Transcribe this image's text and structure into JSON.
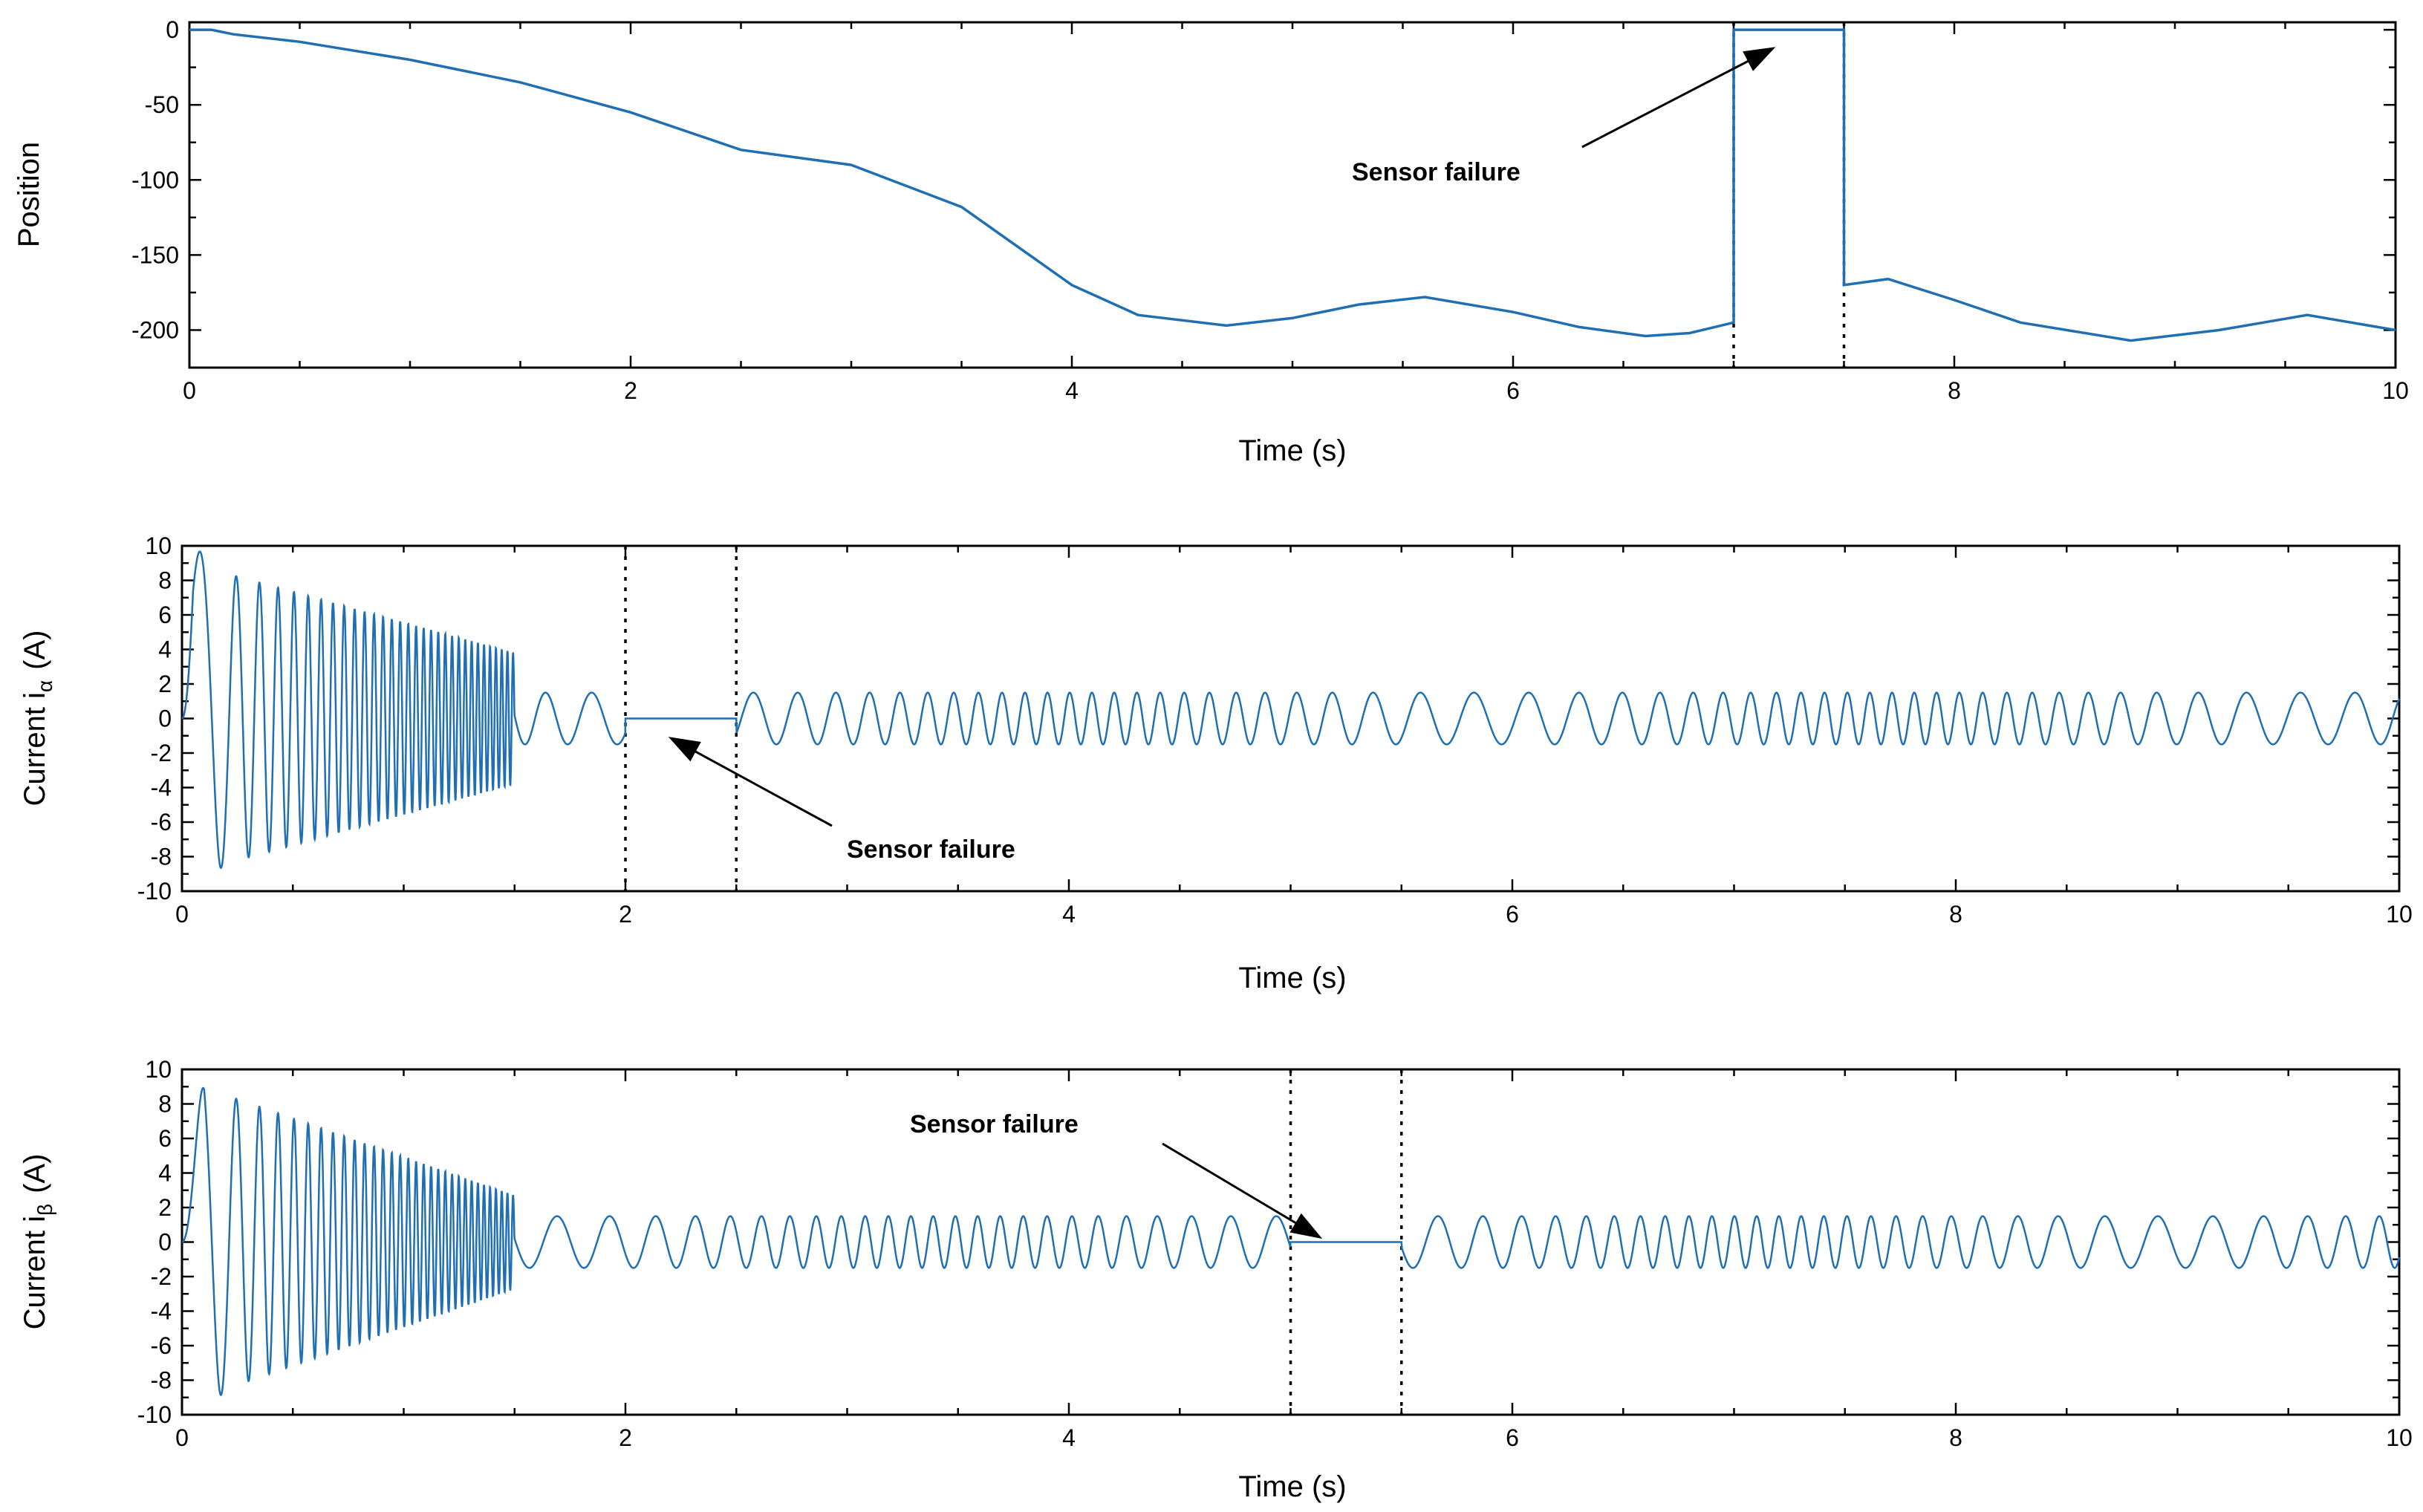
{
  "style": {
    "series_color": "#1f6fb2",
    "axis_color": "#000000"
  },
  "chart_data": [
    {
      "type": "line",
      "xlabel": "Time (s)",
      "ylabel": "Position",
      "xlim": [
        0,
        10
      ],
      "ylim": [
        -225,
        5
      ],
      "xticks": [
        0,
        2,
        4,
        6,
        8,
        10
      ],
      "yticks": [
        0,
        -50,
        -100,
        -150,
        -200
      ],
      "grid": false,
      "series_shape": "position",
      "failure_window": [
        7.0,
        7.5
      ],
      "series": [
        {
          "x": [
            0,
            0.1,
            0.2,
            0.5,
            1.0,
            1.5,
            2.0,
            2.5,
            3.0,
            3.5,
            4.0,
            4.3,
            4.7,
            5.0,
            5.3,
            5.6,
            6.0,
            6.3,
            6.6,
            6.8,
            7.0,
            7.0,
            7.5,
            7.5,
            7.7,
            8.0,
            8.3,
            8.8,
            9.2,
            9.6,
            10.0
          ],
          "y": [
            0,
            0,
            -3,
            -8,
            -20,
            -35,
            -55,
            -80,
            -90,
            -118,
            -170,
            -190,
            -197,
            -192,
            -183,
            -178,
            -188,
            -198,
            -204,
            -202,
            -195,
            0,
            0,
            -170,
            -166,
            -180,
            -195,
            -207,
            -200,
            -190,
            -200
          ]
        }
      ],
      "annotations": [
        {
          "text": "Sensor failure",
          "target": [
            7.2,
            -10
          ]
        }
      ]
    },
    {
      "type": "line",
      "xlabel": "Time (s)",
      "ylabel": "Current i",
      "ylabel_sub": "α",
      "ylabel_unit": "(A)",
      "xlim": [
        0,
        10
      ],
      "ylim": [
        -10,
        10
      ],
      "xticks": [
        0,
        2,
        4,
        6,
        8,
        10
      ],
      "yticks": [
        -10,
        -8,
        -6,
        -4,
        -2,
        0,
        2,
        4,
        6,
        8,
        10
      ],
      "grid": false,
      "series_shape": "current",
      "failure_window": [
        2.0,
        2.5
      ],
      "series": [
        {
          "x": [
            0,
            0.05,
            0.2,
            1.5,
            1.5,
            2.0,
            2.0,
            2.5,
            2.5,
            4.5,
            4.6,
            4.8,
            10.0
          ],
          "y_envelope": [
            0,
            10,
            8.4,
            3.8,
            1.5,
            1.5,
            0,
            0,
            1.5,
            1.5,
            -1.5,
            1.5,
            1.5
          ]
        }
      ],
      "annotations": [
        {
          "text": "Sensor failure",
          "target": [
            2.2,
            -1
          ]
        }
      ]
    },
    {
      "type": "line",
      "xlabel": "Time (s)",
      "ylabel": "Current i",
      "ylabel_sub": "β",
      "ylabel_unit": "(A)",
      "xlim": [
        0,
        10
      ],
      "ylim": [
        -10,
        10
      ],
      "xticks": [
        0,
        2,
        4,
        6,
        8,
        10
      ],
      "yticks": [
        -10,
        -8,
        -6,
        -4,
        -2,
        0,
        2,
        4,
        6,
        8,
        10
      ],
      "grid": false,
      "series_shape": "current",
      "failure_window": [
        5.0,
        5.5
      ],
      "series": [
        {
          "x": [
            0,
            0.1,
            0.2,
            1.5,
            1.5,
            5.0,
            5.0,
            5.5,
            5.5,
            10.0
          ],
          "y_envelope": [
            0,
            10,
            8.5,
            2.7,
            1.5,
            1.5,
            0,
            0,
            1.5,
            1.5
          ]
        }
      ],
      "annotations": [
        {
          "text": "Sensor failure",
          "target": [
            5.15,
            0.2
          ]
        }
      ]
    }
  ]
}
